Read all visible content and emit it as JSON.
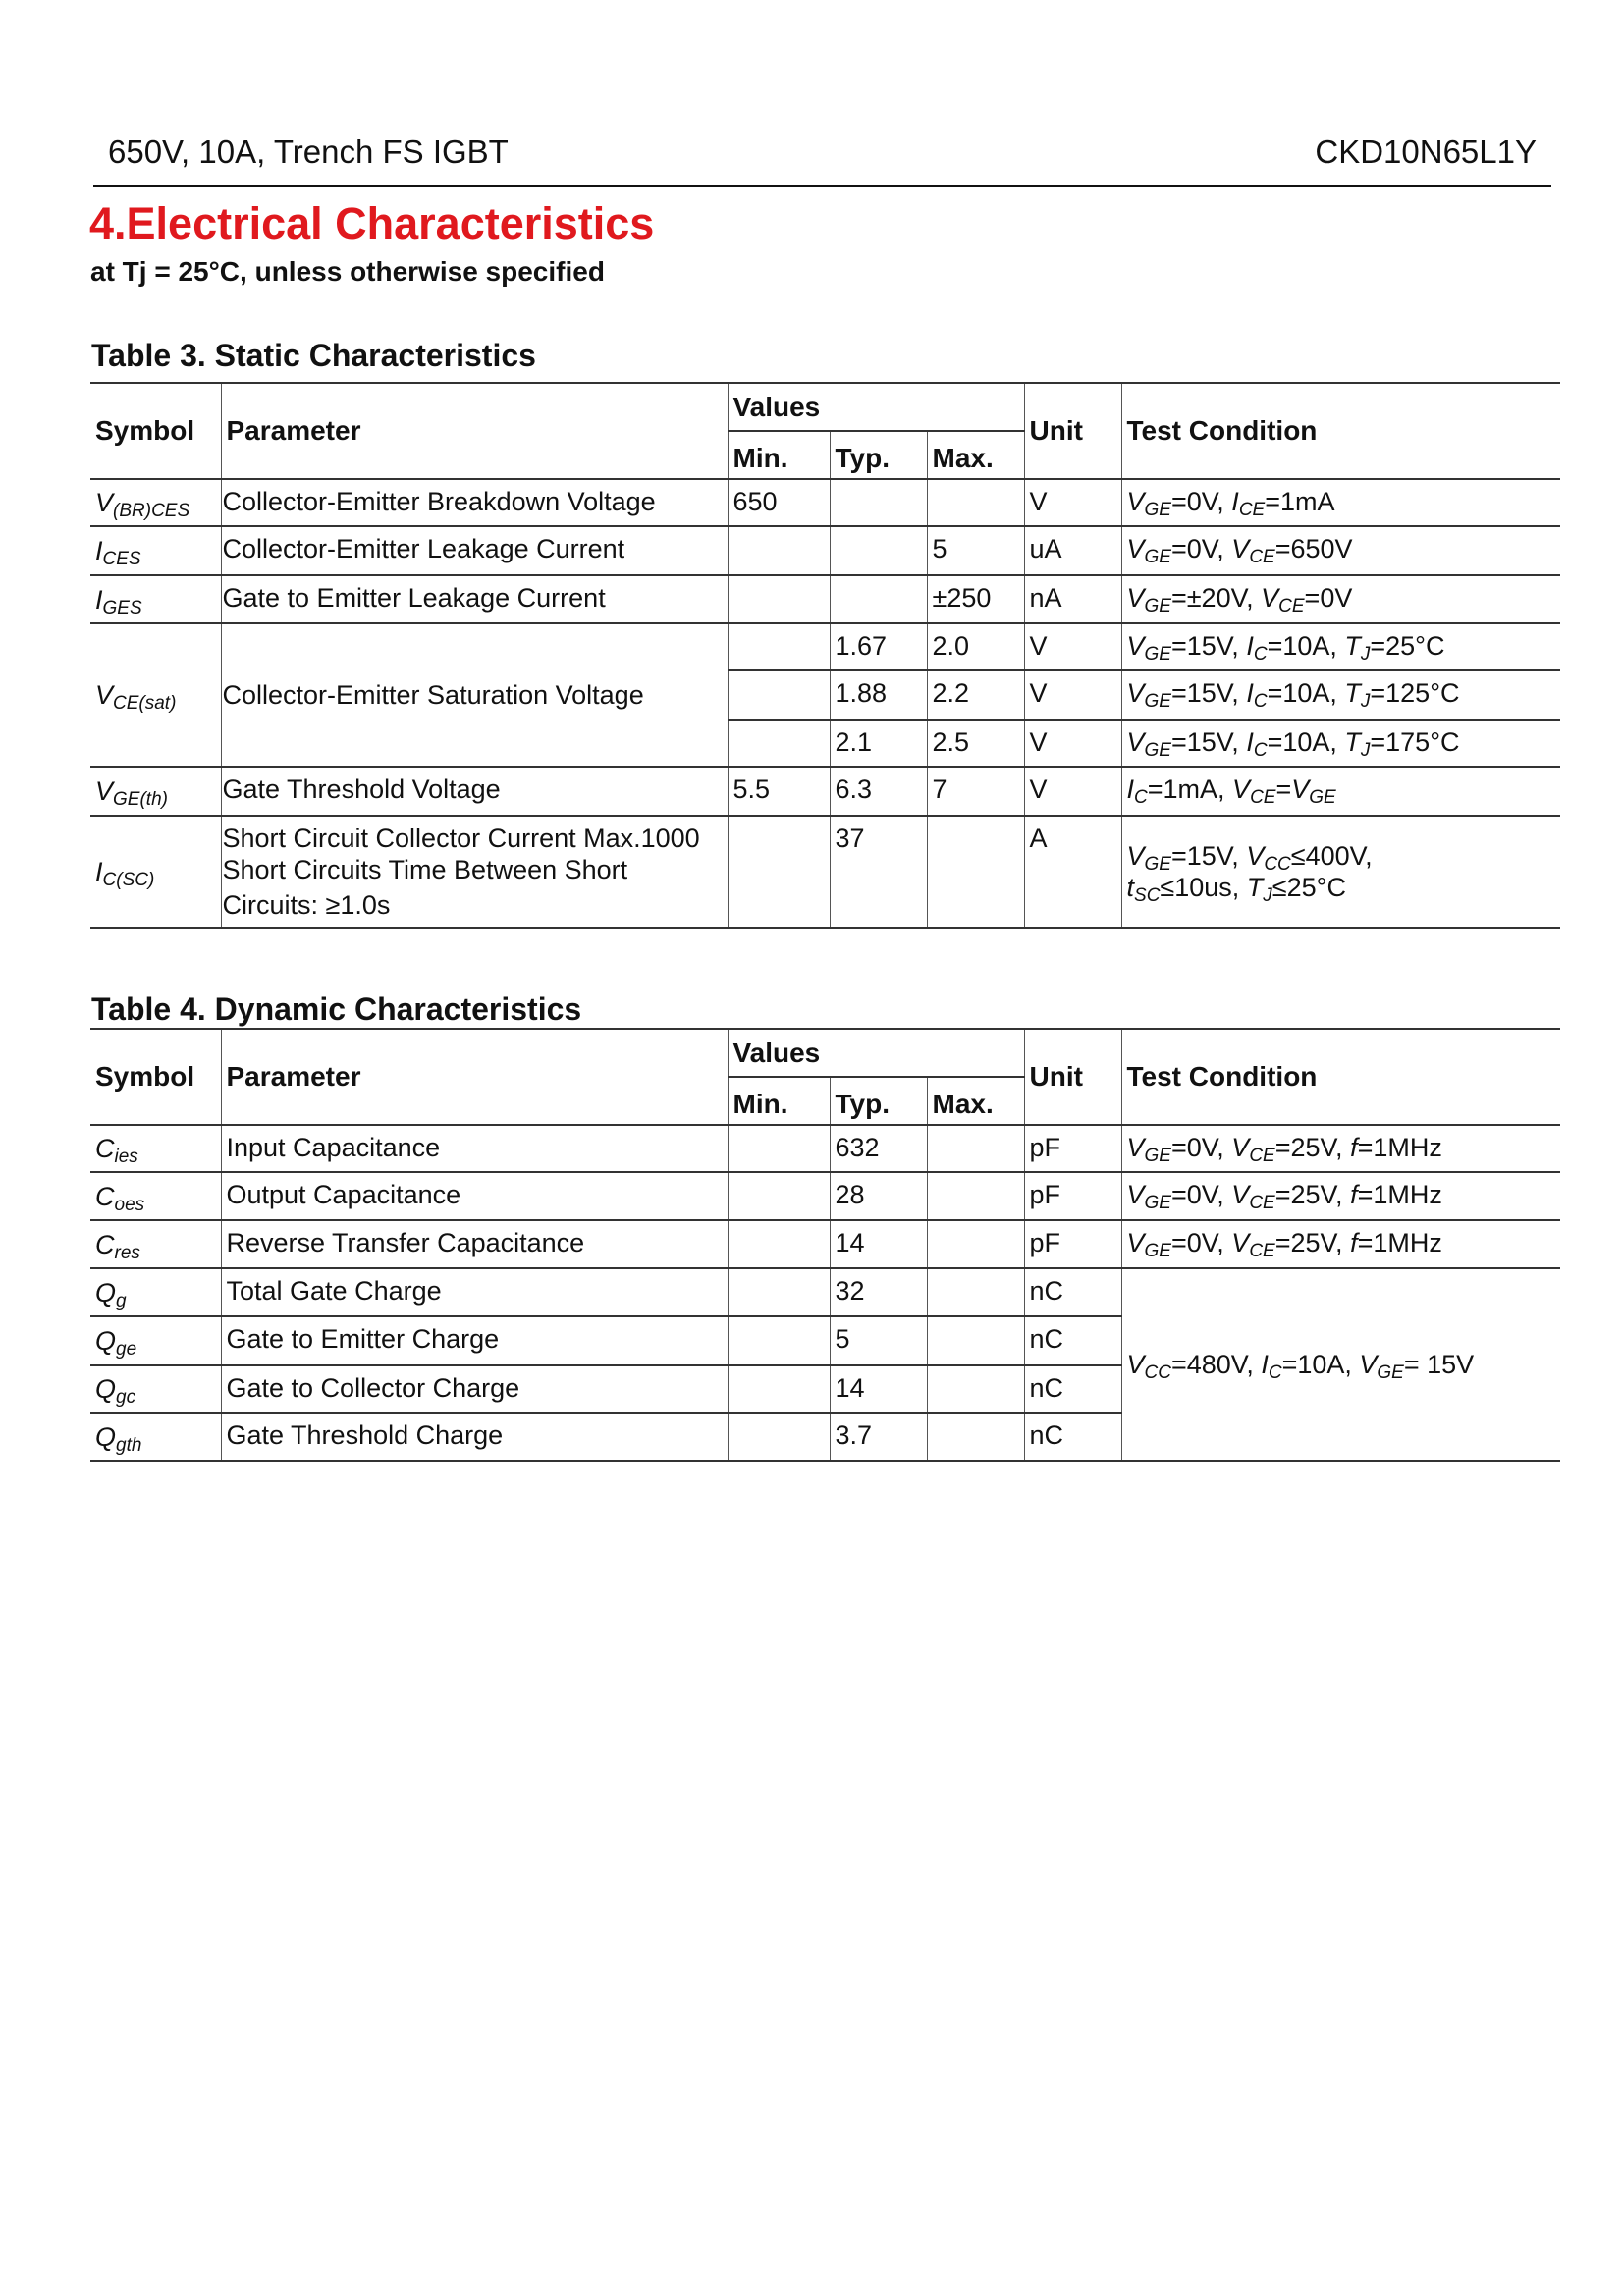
{
  "header": {
    "left": "650V, 10A, Trench FS IGBT",
    "right": "CKD10N65L1Y"
  },
  "section": {
    "title": "4.Electrical Characteristics",
    "subtitle": "at Tj = 25°C, unless otherwise specified"
  },
  "columns": {
    "symbol": "Symbol",
    "parameter": "Parameter",
    "values": "Values",
    "min": "Min.",
    "typ": "Typ.",
    "max": "Max.",
    "unit": "Unit",
    "test": "Test Condition"
  },
  "table3": {
    "title": "Table 3. Static Characteristics",
    "rows": [
      {
        "symbol": [
          [
            "V",
            "i"
          ],
          [
            "(BR)CES",
            "s"
          ]
        ],
        "parameter": [
          "Collector-Emitter Breakdown Voltage"
        ],
        "min": "650",
        "typ": "",
        "max": "",
        "unit": "V",
        "test": [
          [
            [
              "V",
              "i"
            ],
            [
              "GE",
              "s"
            ],
            [
              "=0V, ",
              ""
            ],
            [
              "I",
              "i"
            ],
            [
              "CE",
              "s"
            ],
            [
              "=1mA",
              ""
            ]
          ]
        ]
      },
      {
        "symbol": [
          [
            "I",
            "i"
          ],
          [
            "CES",
            "s"
          ]
        ],
        "parameter": [
          "Collector-Emitter Leakage Current"
        ],
        "min": "",
        "typ": "",
        "max": "5",
        "unit": "uA",
        "test": [
          [
            [
              "V",
              "i"
            ],
            [
              "GE",
              "s"
            ],
            [
              "=0V, ",
              ""
            ],
            [
              "V",
              "i"
            ],
            [
              "CE",
              "s"
            ],
            [
              "=650V",
              ""
            ]
          ]
        ]
      },
      {
        "symbol": [
          [
            "I",
            "i"
          ],
          [
            "GES",
            "s"
          ]
        ],
        "parameter": [
          "Gate to Emitter Leakage Current"
        ],
        "min": "",
        "typ": "",
        "max": "±250",
        "unit": "nA",
        "test": [
          [
            [
              "V",
              "i"
            ],
            [
              "GE",
              "s"
            ],
            [
              "=±20V, ",
              ""
            ],
            [
              "V",
              "i"
            ],
            [
              "CE",
              "s"
            ],
            [
              "=0V",
              ""
            ]
          ]
        ]
      },
      {
        "symbol": [
          [
            "V",
            "i"
          ],
          [
            "CE(sat)",
            "s"
          ]
        ],
        "parameter": [
          "Collector-Emitter Saturation Voltage"
        ],
        "span": 3,
        "min": "",
        "typ": "1.67",
        "max": "2.0",
        "unit": "V",
        "test": [
          [
            [
              "V",
              "i"
            ],
            [
              "GE",
              "s"
            ],
            [
              "=15V, ",
              ""
            ],
            [
              "I",
              "i"
            ],
            [
              "C",
              "s"
            ],
            [
              "=10A, ",
              ""
            ],
            [
              "T",
              "i"
            ],
            [
              "J",
              "s"
            ],
            [
              "=25°C",
              ""
            ]
          ]
        ]
      },
      {
        "min": "",
        "typ": "1.88",
        "max": "2.2",
        "unit": "V",
        "test": [
          [
            [
              "V",
              "i"
            ],
            [
              "GE",
              "s"
            ],
            [
              "=15V, ",
              ""
            ],
            [
              "I",
              "i"
            ],
            [
              "C",
              "s"
            ],
            [
              "=10A, ",
              ""
            ],
            [
              "T",
              "i"
            ],
            [
              "J",
              "s"
            ],
            [
              "=125°C",
              ""
            ]
          ]
        ]
      },
      {
        "min": "",
        "typ": "2.1",
        "max": "2.5",
        "unit": "V",
        "test": [
          [
            [
              "V",
              "i"
            ],
            [
              "GE",
              "s"
            ],
            [
              "=15V, ",
              ""
            ],
            [
              "I",
              "i"
            ],
            [
              "C",
              "s"
            ],
            [
              "=10A, ",
              ""
            ],
            [
              "T",
              "i"
            ],
            [
              "J",
              "s"
            ],
            [
              "=175°C",
              ""
            ]
          ]
        ]
      },
      {
        "symbol": [
          [
            "V",
            "i"
          ],
          [
            "GE(th)",
            "s"
          ]
        ],
        "parameter": [
          "Gate Threshold Voltage"
        ],
        "min": "5.5",
        "typ": "6.3",
        "max": "7",
        "unit": "V",
        "test": [
          [
            [
              "I",
              "i"
            ],
            [
              "C",
              "s"
            ],
            [
              "=1mA, ",
              ""
            ],
            [
              "V",
              "i"
            ],
            [
              "CE",
              "s"
            ],
            [
              "=",
              ""
            ],
            [
              "V",
              "i"
            ],
            [
              "GE",
              "s"
            ]
          ]
        ]
      },
      {
        "symbol": [
          [
            "I",
            "i"
          ],
          [
            "C(SC)",
            "s"
          ]
        ],
        "parameter": [
          "Short Circuit Collector Current Max.1000",
          "Short Circuits Time Between Short",
          "Circuits:  ≥1.0s"
        ],
        "min": "",
        "typ": "37",
        "max": "",
        "unit": "A",
        "testMid": true,
        "test": [
          [
            [
              "V",
              "i"
            ],
            [
              "GE",
              "s"
            ],
            [
              "=15V, ",
              ""
            ],
            [
              "V",
              "i"
            ],
            [
              "CC",
              "s"
            ],
            [
              "≤400V,",
              ""
            ]
          ],
          [
            [
              "t",
              "i"
            ],
            [
              "SC",
              "s"
            ],
            [
              "≤10us, ",
              ""
            ],
            [
              "T",
              "i"
            ],
            [
              "J",
              "s"
            ],
            [
              "≤25°C",
              ""
            ]
          ]
        ]
      }
    ]
  },
  "table4": {
    "title": "Table 4. Dynamic Characteristics",
    "rows": [
      {
        "symbol": [
          [
            "C",
            "i"
          ],
          [
            "ies",
            "s"
          ]
        ],
        "parameter": [
          "Input Capacitance"
        ],
        "min": "",
        "typ": "632",
        "max": "",
        "unit": "pF",
        "test": [
          [
            [
              "V",
              "i"
            ],
            [
              "GE",
              "s"
            ],
            [
              "=0V, ",
              ""
            ],
            [
              "V",
              "i"
            ],
            [
              "CE",
              "s"
            ],
            [
              "=25V, ",
              ""
            ],
            [
              "f",
              "i"
            ],
            [
              "=1MHz",
              ""
            ]
          ]
        ]
      },
      {
        "symbol": [
          [
            "C",
            "i"
          ],
          [
            "oes",
            "s"
          ]
        ],
        "parameter": [
          "Output Capacitance"
        ],
        "min": "",
        "typ": "28",
        "max": "",
        "unit": "pF",
        "test": [
          [
            [
              "V",
              "i"
            ],
            [
              "GE",
              "s"
            ],
            [
              "=0V, ",
              ""
            ],
            [
              "V",
              "i"
            ],
            [
              "CE",
              "s"
            ],
            [
              "=25V, ",
              ""
            ],
            [
              "f",
              "i"
            ],
            [
              "=1MHz",
              ""
            ]
          ]
        ]
      },
      {
        "symbol": [
          [
            "C",
            "i"
          ],
          [
            "res",
            "s"
          ]
        ],
        "parameter": [
          "Reverse Transfer Capacitance"
        ],
        "min": "",
        "typ": "14",
        "max": "",
        "unit": "pF",
        "test": [
          [
            [
              "V",
              "i"
            ],
            [
              "GE",
              "s"
            ],
            [
              "=0V, ",
              ""
            ],
            [
              "V",
              "i"
            ],
            [
              "CE",
              "s"
            ],
            [
              "=25V, ",
              ""
            ],
            [
              "f",
              "i"
            ],
            [
              "=1MHz",
              ""
            ]
          ]
        ]
      },
      {
        "symbol": [
          [
            "Q",
            "i"
          ],
          [
            "g",
            "s"
          ]
        ],
        "parameter": [
          "Total Gate Charge"
        ],
        "min": "",
        "typ": "32",
        "max": "",
        "unit": "nC",
        "testSpan": 4,
        "testMid": true,
        "test": [
          [
            [
              "V",
              "i"
            ],
            [
              "CC",
              "s"
            ],
            [
              "=480V, ",
              ""
            ],
            [
              "I",
              "i"
            ],
            [
              "C",
              "s"
            ],
            [
              "=10A, ",
              ""
            ],
            [
              "V",
              "i"
            ],
            [
              "GE",
              "s"
            ],
            [
              "= 15V",
              ""
            ]
          ]
        ]
      },
      {
        "symbol": [
          [
            "Q",
            "i"
          ],
          [
            "ge",
            "s"
          ]
        ],
        "parameter": [
          "Gate to Emitter Charge"
        ],
        "min": "",
        "typ": "5",
        "max": "",
        "unit": "nC",
        "noTest": true
      },
      {
        "symbol": [
          [
            "Q",
            "i"
          ],
          [
            "gc",
            "s"
          ]
        ],
        "parameter": [
          "Gate to Collector Charge"
        ],
        "min": "",
        "typ": "14",
        "max": "",
        "unit": "nC",
        "noTest": true
      },
      {
        "symbol": [
          [
            "Q",
            "i"
          ],
          [
            "gth",
            "s"
          ]
        ],
        "parameter": [
          "Gate Threshold Charge"
        ],
        "min": "",
        "typ": "3.7",
        "max": "",
        "unit": "nC",
        "noTest": true
      }
    ]
  }
}
